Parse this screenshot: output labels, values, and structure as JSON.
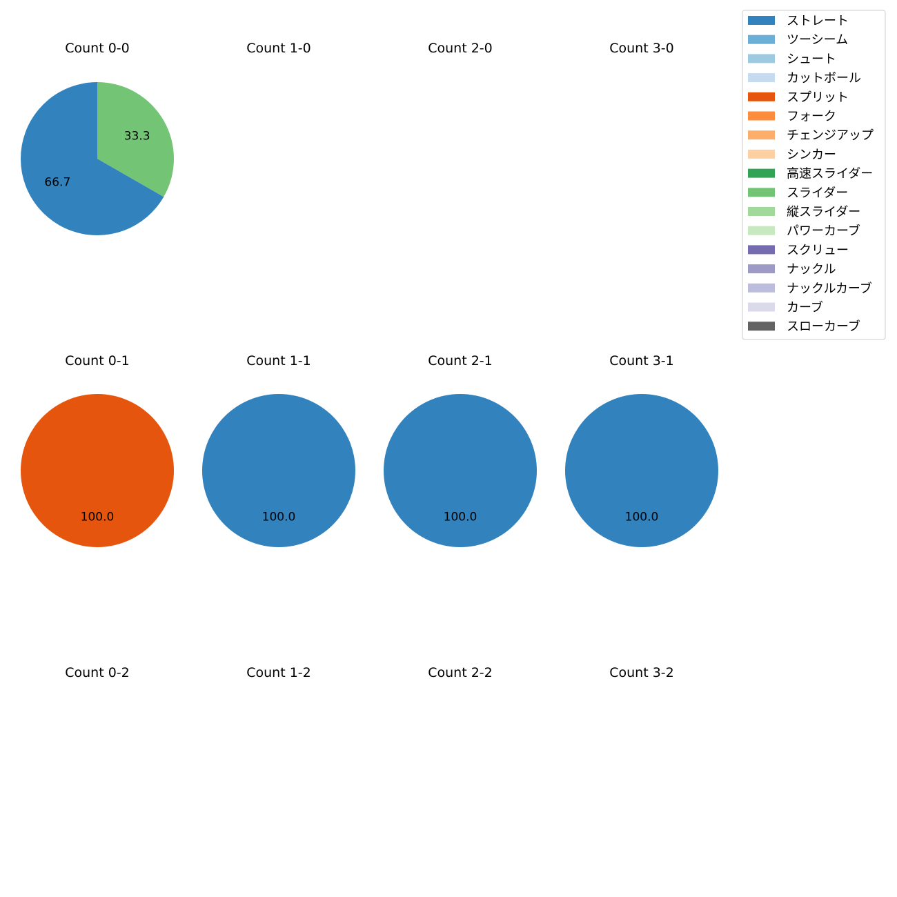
{
  "chart_data": {
    "type": "pie",
    "legend_position": "top-right",
    "legend": [
      {
        "name": "ストレート",
        "color": "#3182bd"
      },
      {
        "name": "ツーシーム",
        "color": "#6baed6"
      },
      {
        "name": "シュート",
        "color": "#9ecae1"
      },
      {
        "name": "カットボール",
        "color": "#c6dbef"
      },
      {
        "name": "スプリット",
        "color": "#e6550d"
      },
      {
        "name": "フォーク",
        "color": "#fd8d3c"
      },
      {
        "name": "チェンジアップ",
        "color": "#fdae6b"
      },
      {
        "name": "シンカー",
        "color": "#fdd0a2"
      },
      {
        "name": "高速スライダー",
        "color": "#31a354"
      },
      {
        "name": "スライダー",
        "color": "#74c476"
      },
      {
        "name": "縦スライダー",
        "color": "#a1d99b"
      },
      {
        "name": "パワーカーブ",
        "color": "#c7e9c0"
      },
      {
        "name": "スクリュー",
        "color": "#756bb1"
      },
      {
        "name": "ナックル",
        "color": "#9e9ac8"
      },
      {
        "name": "ナックルカーブ",
        "color": "#bcbddc"
      },
      {
        "name": "カーブ",
        "color": "#dadaeb"
      },
      {
        "name": "スローカーブ",
        "color": "#636363"
      }
    ],
    "panels": [
      {
        "title": "Count 0-0",
        "slices": [
          {
            "name": "ストレート",
            "value": 66.7,
            "label": "66.7"
          },
          {
            "name": "スライダー",
            "value": 33.3,
            "label": "33.3"
          }
        ]
      },
      {
        "title": "Count 1-0",
        "slices": []
      },
      {
        "title": "Count 2-0",
        "slices": []
      },
      {
        "title": "Count 3-0",
        "slices": []
      },
      {
        "title": "Count 0-1",
        "slices": [
          {
            "name": "スプリット",
            "value": 100.0,
            "label": "100.0"
          }
        ]
      },
      {
        "title": "Count 1-1",
        "slices": [
          {
            "name": "ストレート",
            "value": 100.0,
            "label": "100.0"
          }
        ]
      },
      {
        "title": "Count 2-1",
        "slices": [
          {
            "name": "ストレート",
            "value": 100.0,
            "label": "100.0"
          }
        ]
      },
      {
        "title": "Count 3-1",
        "slices": [
          {
            "name": "ストレート",
            "value": 100.0,
            "label": "100.0"
          }
        ]
      },
      {
        "title": "Count 0-2",
        "slices": []
      },
      {
        "title": "Count 1-2",
        "slices": []
      },
      {
        "title": "Count 2-2",
        "slices": []
      },
      {
        "title": "Count 3-2",
        "slices": []
      }
    ]
  }
}
